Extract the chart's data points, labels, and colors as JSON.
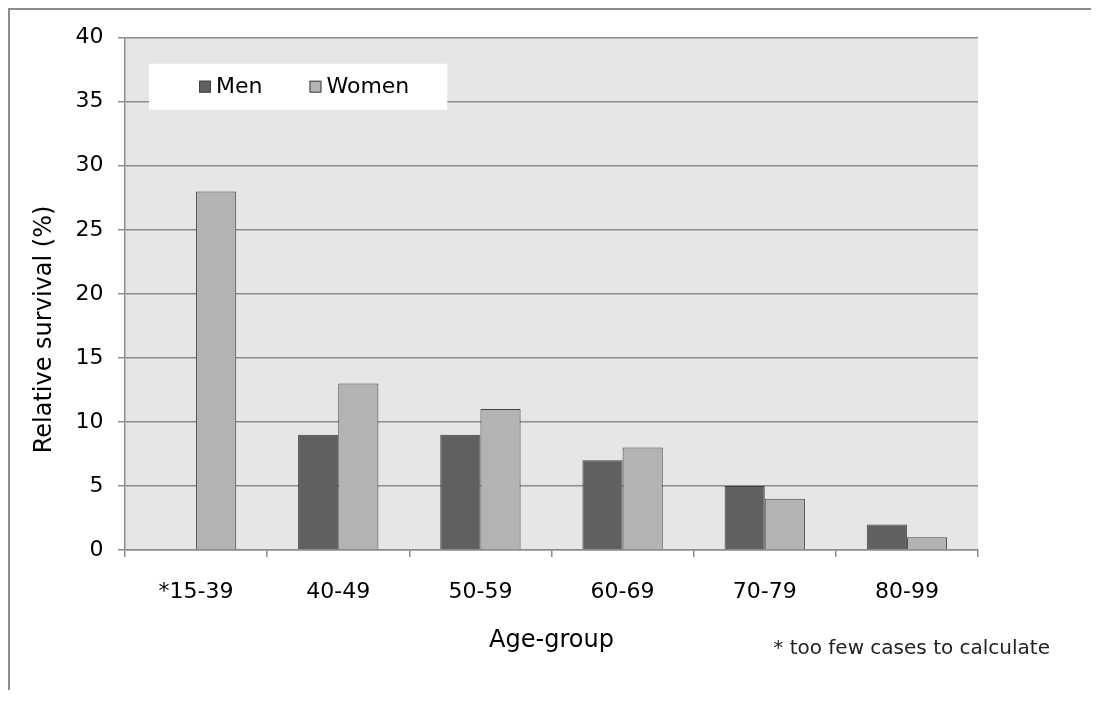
{
  "chart_data": {
    "type": "bar",
    "categories": [
      "*15-39",
      "40-49",
      "50-59",
      "60-69",
      "70-79",
      "80-99"
    ],
    "series": [
      {
        "name": "Men",
        "color": "#606060",
        "values": [
          null,
          9,
          9,
          7,
          5,
          2
        ]
      },
      {
        "name": "Women",
        "color": "#b3b3b3",
        "values": [
          28,
          13,
          11,
          8,
          4,
          1
        ]
      }
    ],
    "xlabel": "Age-group",
    "ylabel": "Relative survival (%)",
    "ylim": [
      0,
      40
    ],
    "yticks": [
      0,
      5,
      10,
      15,
      20,
      25,
      30,
      35,
      40
    ],
    "grid": "y",
    "legend": "top left",
    "annotations": [
      "* too few cases to calculate"
    ]
  }
}
